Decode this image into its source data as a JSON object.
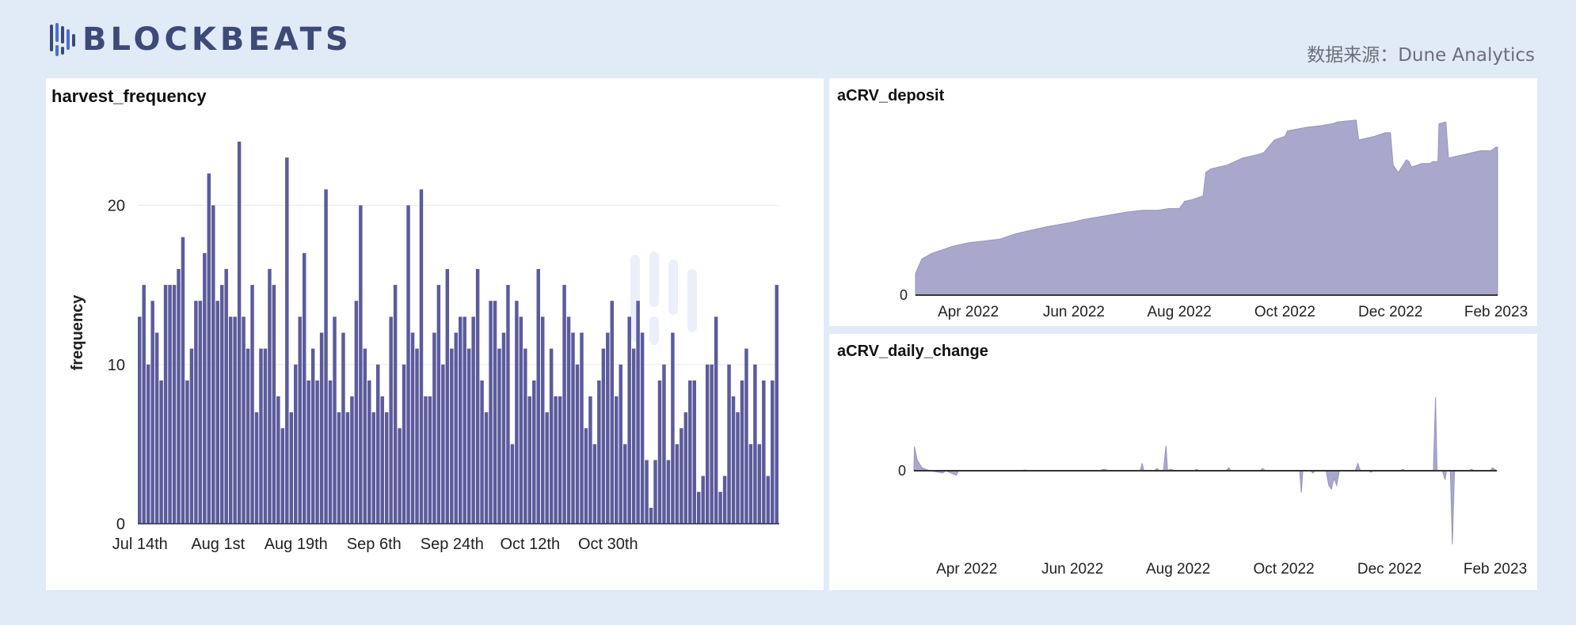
{
  "header": {
    "logo_text": "BLOCKBEATS",
    "logo_icon": "blockbeats-bars-icon",
    "source_text": "数据来源：Dune Analytics"
  },
  "colors": {
    "bar": "#5b5b9c",
    "area": "#a9a8cc",
    "background": "#e1eaf7",
    "panel": "#ffffff"
  },
  "chart_data": [
    {
      "type": "bar",
      "title": "harvest_frequency",
      "ylabel": "frequency",
      "xlabel": "",
      "ylim": [
        0,
        24
      ],
      "yticks": [
        0,
        10,
        20
      ],
      "grid": true,
      "x_tick_labels": [
        "Jul 14th",
        "Aug 1st",
        "Aug 19th",
        "Sep 6th",
        "Sep 24th",
        "Oct 12th",
        "Oct 30th"
      ],
      "x_tick_indices": [
        0,
        18,
        36,
        54,
        72,
        90,
        108
      ],
      "values": [
        13,
        15,
        10,
        14,
        12,
        9,
        15,
        15,
        15,
        16,
        18,
        9,
        11,
        14,
        14,
        17,
        22,
        20,
        14,
        15,
        16,
        13,
        13,
        24,
        13,
        11,
        15,
        7,
        11,
        11,
        16,
        15,
        8,
        6,
        23,
        7,
        10,
        13,
        17,
        9,
        11,
        9,
        12,
        21,
        9,
        13,
        7,
        12,
        7,
        8,
        14,
        20,
        11,
        9,
        7,
        10,
        8,
        7,
        13,
        15,
        6,
        10,
        20,
        12,
        11,
        21,
        8,
        8,
        12,
        15,
        10,
        16,
        11,
        12,
        13,
        13,
        11,
        13,
        16,
        9,
        7,
        14,
        14,
        11,
        12,
        15,
        5,
        14,
        13,
        11,
        8,
        9,
        16,
        13,
        7,
        11,
        8,
        8,
        15,
        13,
        12,
        10,
        12,
        6,
        8,
        5,
        9,
        11,
        12,
        14,
        8,
        10,
        5,
        13,
        11,
        14,
        12,
        4,
        1,
        4,
        9,
        10,
        4,
        12,
        5,
        6,
        7,
        9,
        9,
        2,
        3,
        10,
        10,
        13,
        2,
        3,
        10,
        8,
        7,
        9,
        11,
        5,
        10,
        5,
        9,
        3,
        9,
        15
      ]
    },
    {
      "type": "area",
      "title": "aCRV_deposit",
      "yticks": [
        0
      ],
      "x_tick_labels": [
        "Apr 2022",
        "Jun 2022",
        "Aug 2022",
        "Oct 2022",
        "Dec 2022",
        "Feb 2023"
      ],
      "x_tick_positions": [
        3.0,
        5.0,
        7.0,
        9.0,
        11.0,
        13.0
      ],
      "xlim": [
        2.0,
        13.03
      ],
      "ylim": [
        0,
        100
      ],
      "points": [
        [
          2.0,
          12
        ],
        [
          2.12,
          20
        ],
        [
          2.3,
          23
        ],
        [
          2.5,
          25
        ],
        [
          2.7,
          27
        ],
        [
          3.0,
          29
        ],
        [
          3.3,
          30
        ],
        [
          3.6,
          31
        ],
        [
          3.9,
          34
        ],
        [
          4.2,
          36
        ],
        [
          4.5,
          38
        ],
        [
          4.9,
          40
        ],
        [
          5.2,
          42
        ],
        [
          5.6,
          44
        ],
        [
          6.0,
          46
        ],
        [
          6.3,
          47
        ],
        [
          6.6,
          47
        ],
        [
          6.8,
          48
        ],
        [
          7.0,
          48
        ],
        [
          7.1,
          52
        ],
        [
          7.25,
          53
        ],
        [
          7.45,
          55
        ],
        [
          7.5,
          68
        ],
        [
          7.6,
          70
        ],
        [
          7.9,
          72
        ],
        [
          8.2,
          76
        ],
        [
          8.5,
          78
        ],
        [
          8.6,
          79
        ],
        [
          8.8,
          86
        ],
        [
          9.0,
          88
        ],
        [
          9.05,
          91
        ],
        [
          9.4,
          93
        ],
        [
          9.7,
          94
        ],
        [
          9.9,
          95
        ],
        [
          10.0,
          96
        ],
        [
          10.35,
          97
        ],
        [
          10.4,
          86
        ],
        [
          10.7,
          88
        ],
        [
          10.9,
          90
        ],
        [
          11.0,
          90
        ],
        [
          11.05,
          72
        ],
        [
          11.15,
          68
        ],
        [
          11.3,
          75
        ],
        [
          11.35,
          74
        ],
        [
          11.4,
          71
        ],
        [
          11.6,
          73
        ],
        [
          11.75,
          73
        ],
        [
          11.8,
          74
        ],
        [
          11.9,
          74
        ],
        [
          11.92,
          95
        ],
        [
          12.05,
          96
        ],
        [
          12.1,
          76
        ],
        [
          12.4,
          78
        ],
        [
          12.7,
          80
        ],
        [
          12.9,
          80
        ],
        [
          13.0,
          82
        ],
        [
          13.03,
          82
        ]
      ]
    },
    {
      "type": "area",
      "title": "aCRV_daily_change",
      "yticks": [
        0
      ],
      "x_tick_labels": [
        "Apr 2022",
        "Jun 2022",
        "Aug 2022",
        "Oct 2022",
        "Dec 2022",
        "Feb 2023"
      ],
      "x_tick_positions": [
        3.0,
        5.0,
        7.0,
        9.0,
        11.0,
        13.0
      ],
      "xlim": [
        2.0,
        13.03
      ],
      "ylim": [
        -100,
        100
      ],
      "points": [
        [
          2.0,
          0
        ],
        [
          2.01,
          33
        ],
        [
          2.06,
          15
        ],
        [
          2.15,
          4
        ],
        [
          2.3,
          0
        ],
        [
          2.55,
          -3
        ],
        [
          2.6,
          0
        ],
        [
          2.8,
          -6
        ],
        [
          2.85,
          0
        ],
        [
          4.0,
          0
        ],
        [
          4.1,
          1
        ],
        [
          4.2,
          0
        ],
        [
          5.5,
          0
        ],
        [
          5.6,
          2
        ],
        [
          5.7,
          0
        ],
        [
          6.28,
          0
        ],
        [
          6.32,
          10
        ],
        [
          6.35,
          0
        ],
        [
          6.55,
          0
        ],
        [
          6.6,
          3
        ],
        [
          6.65,
          0
        ],
        [
          6.72,
          0
        ],
        [
          6.77,
          34
        ],
        [
          6.8,
          0
        ],
        [
          6.85,
          2
        ],
        [
          6.95,
          0
        ],
        [
          7.3,
          0
        ],
        [
          7.35,
          2
        ],
        [
          7.4,
          0
        ],
        [
          7.9,
          0
        ],
        [
          7.96,
          4
        ],
        [
          8.0,
          0
        ],
        [
          8.55,
          0
        ],
        [
          8.6,
          3
        ],
        [
          8.65,
          0
        ],
        [
          9.3,
          0
        ],
        [
          9.33,
          -30
        ],
        [
          9.36,
          0
        ],
        [
          9.5,
          0
        ],
        [
          9.55,
          -3
        ],
        [
          9.6,
          0
        ],
        [
          9.8,
          0
        ],
        [
          9.85,
          -20
        ],
        [
          9.9,
          -25
        ],
        [
          9.95,
          -10
        ],
        [
          10.0,
          -20
        ],
        [
          10.05,
          0
        ],
        [
          10.35,
          0
        ],
        [
          10.4,
          10
        ],
        [
          10.45,
          0
        ],
        [
          10.6,
          0
        ],
        [
          10.65,
          -2
        ],
        [
          10.7,
          0
        ],
        [
          11.2,
          0
        ],
        [
          11.25,
          2
        ],
        [
          11.3,
          0
        ],
        [
          11.83,
          0
        ],
        [
          11.87,
          100
        ],
        [
          11.9,
          0
        ],
        [
          12.0,
          0
        ],
        [
          12.05,
          -12
        ],
        [
          12.08,
          0
        ],
        [
          12.15,
          0
        ],
        [
          12.19,
          -100
        ],
        [
          12.23,
          0
        ],
        [
          12.5,
          0
        ],
        [
          12.55,
          2
        ],
        [
          12.6,
          0
        ],
        [
          12.9,
          0
        ],
        [
          12.95,
          4
        ],
        [
          13.03,
          0
        ]
      ]
    }
  ]
}
